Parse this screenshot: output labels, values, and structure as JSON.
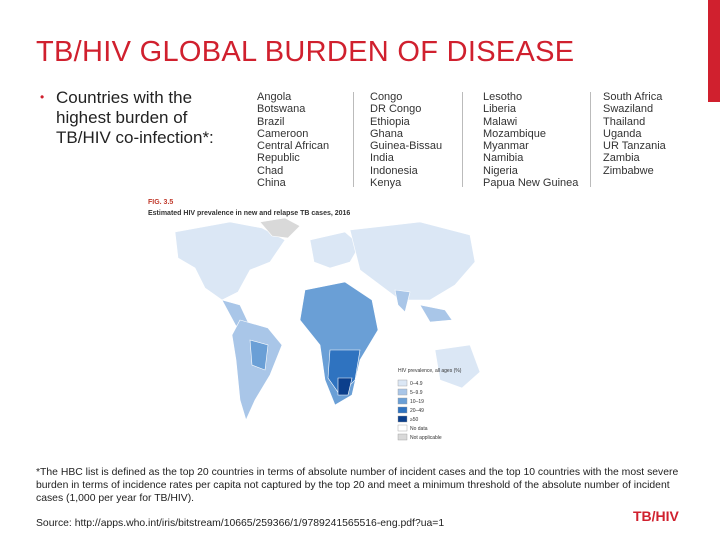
{
  "title": "TB/HIV GLOBAL BURDEN OF DISEASE",
  "bullet": "Countries with the highest burden of TB/HIV co-infection*:",
  "countries": [
    [
      "Angola",
      "Botswana",
      "Brazil",
      "Cameroon",
      "Central African Republic",
      "Chad",
      "China"
    ],
    [
      "Congo",
      "DR Congo",
      "Ethiopia",
      "Ghana",
      "Guinea-Bissau",
      "India",
      "Indonesia",
      "Kenya"
    ],
    [
      "Lesotho",
      "Liberia",
      "Malawi",
      "Mozambique",
      "Myanmar",
      "Namibia",
      "Nigeria",
      "Papua New Guinea"
    ],
    [
      "South Africa",
      "Swaziland",
      "Thailand",
      "Uganda",
      "UR Tanzania",
      "Zambia",
      "Zimbabwe"
    ]
  ],
  "figure": {
    "label": "FIG. 3.5",
    "caption": "Estimated HIV prevalence in new and relapse TB cases, 2016",
    "legend": {
      "title": "HIV prevalence, all ages (%)",
      "items": [
        {
          "label": "0–4.9",
          "color": "#dbe7f5"
        },
        {
          "label": "5–9.9",
          "color": "#a9c6e8"
        },
        {
          "label": "10–19",
          "color": "#6a9fd6"
        },
        {
          "label": "20–49",
          "color": "#2f73c0"
        },
        {
          "label": "≥50",
          "color": "#0b3f8c"
        },
        {
          "label": "No data",
          "color": "#ffffff"
        },
        {
          "label": "Not applicable",
          "color": "#d9d9d9"
        }
      ]
    }
  },
  "footnote": "*The HBC list is defined as the top 20 countries in terms of absolute number of incident cases and the top 10 countries with the most severe burden in terms of incidence rates per capita not captured by the top 20 and meet a minimum threshold of the absolute number of incident cases (1,000 per year for TB/HIV).",
  "source": "Source: http://apps.who.int/iris/bitstream/10665/259366/1/9789241565516-eng.pdf?ua=1",
  "footer": "TB/HIV"
}
